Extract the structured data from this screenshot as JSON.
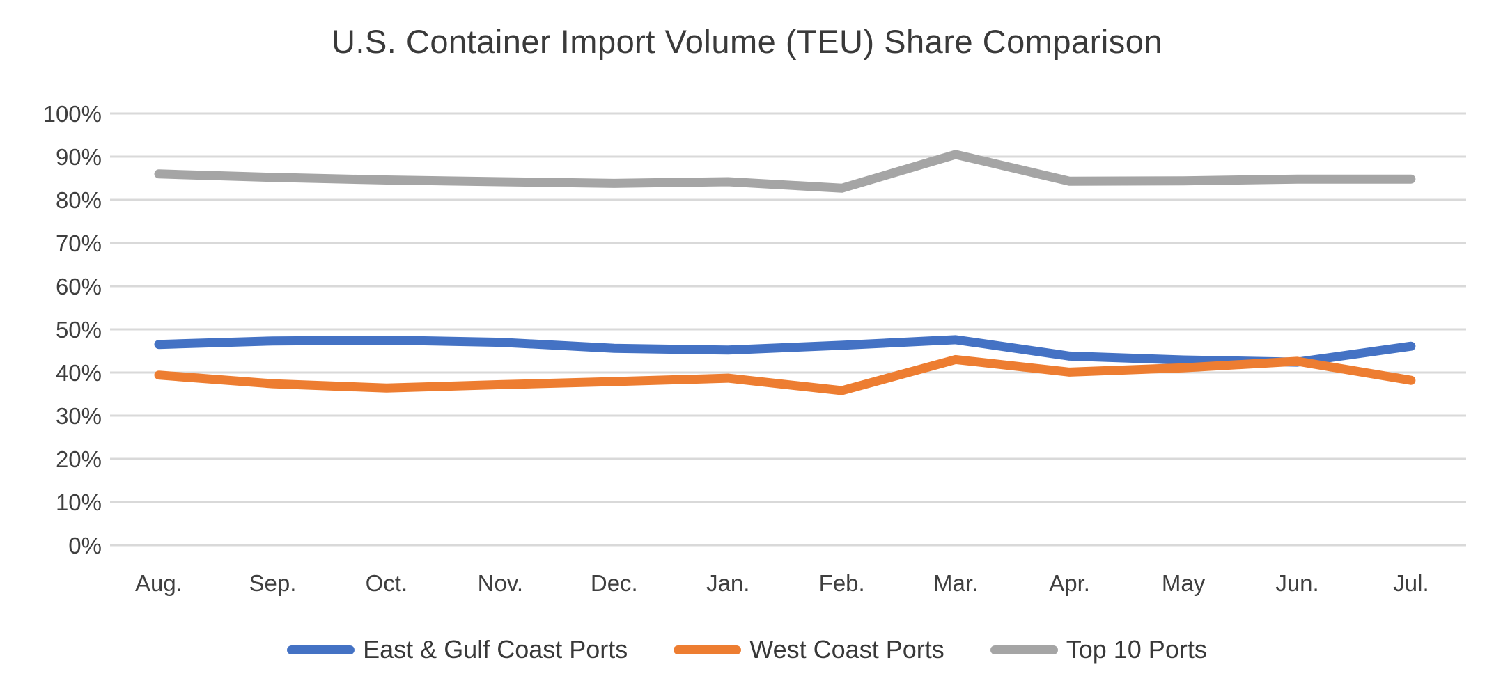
{
  "chart_data": {
    "type": "line",
    "title": "U.S. Container Import Volume (TEU) Share Comparison",
    "categories": [
      "Aug.",
      "Sep.",
      "Oct.",
      "Nov.",
      "Dec.",
      "Jan.",
      "Feb.",
      "Mar.",
      "Apr.",
      "May",
      "Jun.",
      "Jul."
    ],
    "series": [
      {
        "name": "East & Gulf Coast Ports",
        "color": "#4472C4",
        "values": [
          46.5,
          47.3,
          47.5,
          47.0,
          45.6,
          45.2,
          46.3,
          47.6,
          43.8,
          42.9,
          42.4,
          46.1
        ]
      },
      {
        "name": "West Coast Ports",
        "color": "#ED7D31",
        "values": [
          39.4,
          37.4,
          36.4,
          37.2,
          37.9,
          38.7,
          35.8,
          43.0,
          40.1,
          41.1,
          42.6,
          38.2
        ]
      },
      {
        "name": "Top 10 Ports",
        "color": "#A5A5A5",
        "values": [
          86.0,
          85.2,
          84.6,
          84.2,
          83.8,
          84.2,
          82.7,
          90.5,
          84.3,
          84.4,
          84.8,
          84.8
        ]
      }
    ],
    "xlabel": "",
    "ylabel": "",
    "y_axis": {
      "min": 0,
      "max": 100,
      "step": 10,
      "tick_suffix": "%"
    },
    "ylim": [
      0,
      100
    ],
    "grid": "horizontal",
    "legend_position": "bottom",
    "colors": {
      "gridline": "#D9D9D9",
      "axis_text": "#3f3f3f",
      "background": "#FFFFFF"
    }
  }
}
